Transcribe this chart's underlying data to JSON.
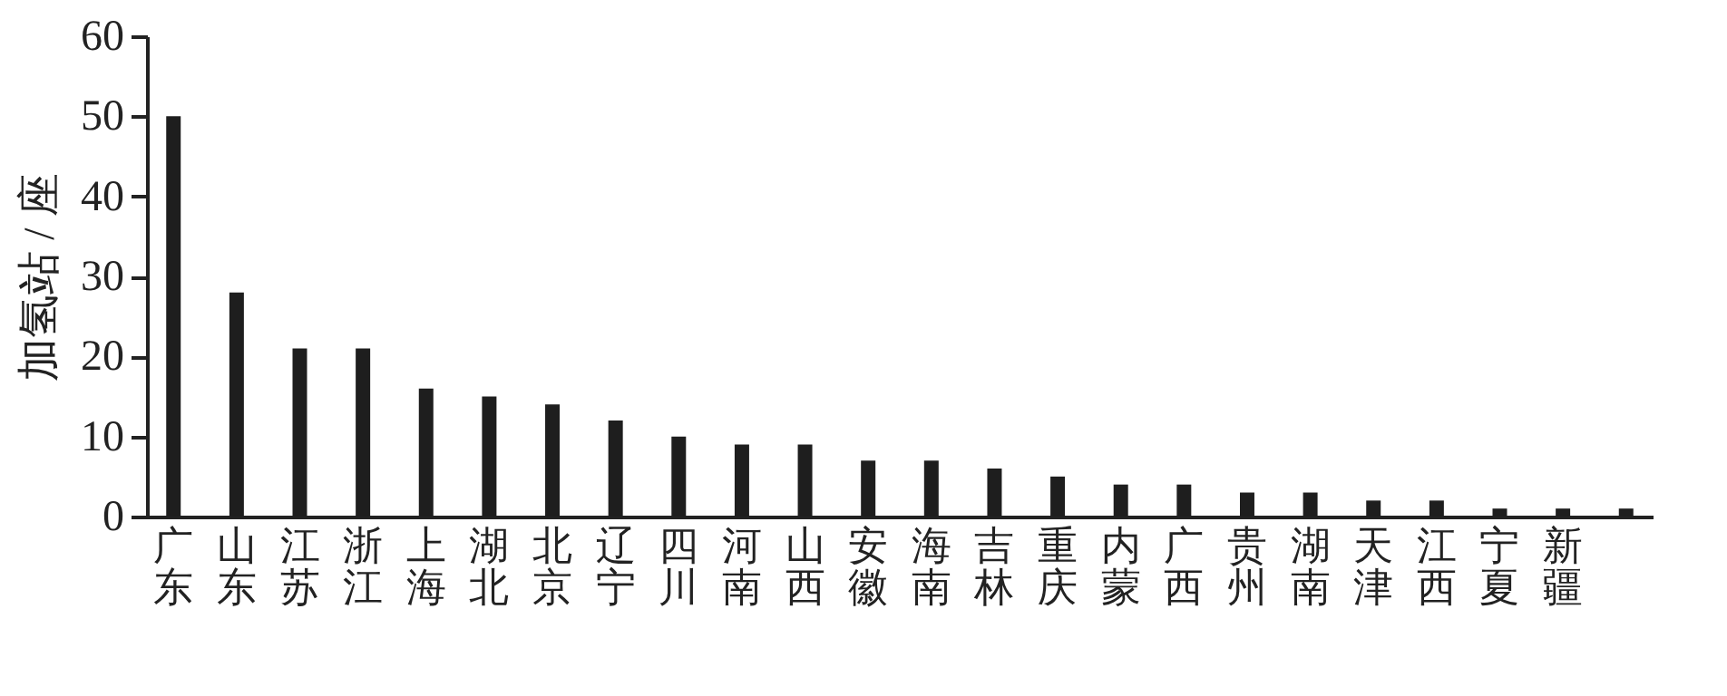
{
  "chart_data": {
    "type": "bar",
    "ylabel": "加氢站 / 座",
    "categories": [
      "广东",
      "山东",
      "江苏",
      "浙江",
      "上海",
      "湖北",
      "北京",
      "辽宁",
      "四川",
      "河南",
      "山西",
      "安徽",
      "海南",
      "吉林",
      "重庆",
      "内蒙",
      "广西",
      "贵州",
      "湖南",
      "天津",
      "江西",
      "宁夏",
      "新疆",
      null
    ],
    "values": [
      50,
      28,
      21,
      21,
      16,
      15,
      14,
      12,
      10,
      9,
      9,
      7,
      7,
      6,
      5,
      4,
      4,
      3,
      3,
      2,
      2,
      1,
      1,
      1
    ],
    "color": "#1e1e1e",
    "ylim": [
      0,
      60
    ],
    "yticks": [
      0,
      10,
      20,
      30,
      40,
      50,
      60
    ],
    "grid": false
  }
}
